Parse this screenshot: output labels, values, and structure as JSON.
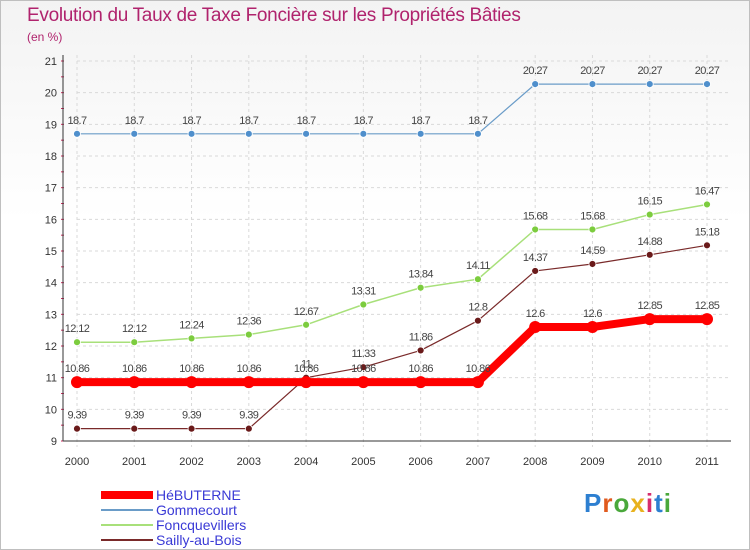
{
  "title": "Evolution du Taux de Taxe Foncière sur les Propriétés Bâties",
  "subtitle": "(en %)",
  "brand": {
    "letters": [
      "P",
      "r",
      "o",
      "x",
      "i",
      "t",
      "i"
    ],
    "colors": [
      "#2d7fd1",
      "#e05a1e",
      "#4aa83b",
      "#e8b21f",
      "#d62d6e",
      "#2d7fd1",
      "#4aa83b"
    ]
  },
  "chart_data": {
    "type": "line",
    "title": "Evolution du Taux de Taxe Foncière sur les Propriétés Bâties",
    "ylabel": "(en %)",
    "xlabel": "",
    "x": [
      "2000",
      "2001",
      "2002",
      "2003",
      "2004",
      "2005",
      "2006",
      "2007",
      "2008",
      "2009",
      "2010",
      "2011"
    ],
    "ylim": [
      9,
      21
    ],
    "yticks": [
      "9",
      "10",
      "11",
      "12",
      "13",
      "14",
      "15",
      "16",
      "17",
      "18",
      "19",
      "20",
      "21"
    ],
    "grid": true,
    "legend": "bottom-left",
    "series": [
      {
        "name": "HéBUTERNE",
        "color": "#ff0000",
        "width": 8,
        "marker": 6,
        "values": [
          10.86,
          10.86,
          10.86,
          10.86,
          10.86,
          10.86,
          10.86,
          10.86,
          12.6,
          12.6,
          12.85,
          12.85
        ],
        "labels": [
          "10.86",
          "10.86",
          "10.86",
          "10.86",
          "10.86",
          "10.86",
          "10.86",
          "10.86",
          "12.6",
          "12.6",
          "12.85",
          "12.85"
        ]
      },
      {
        "name": "Gommecourt",
        "color": "#6a9cc8",
        "width": 1.2,
        "marker": 3.5,
        "fill": "#4f8fcc",
        "values": [
          18.7,
          18.7,
          18.7,
          18.7,
          18.7,
          18.7,
          18.7,
          18.7,
          20.27,
          20.27,
          20.27,
          20.27
        ],
        "labels": [
          "18.7",
          "18.7",
          "18.7",
          "18.7",
          "18.7",
          "18.7",
          "18.7",
          "18.7",
          "20.27",
          "20.27",
          "20.27",
          "20.27"
        ]
      },
      {
        "name": "Foncquevillers",
        "color": "#a8e07a",
        "width": 1.5,
        "marker": 3.5,
        "fill": "#7ccc3e",
        "values": [
          12.12,
          12.12,
          12.24,
          12.36,
          12.67,
          13.31,
          13.84,
          14.11,
          15.68,
          15.68,
          16.15,
          16.47
        ],
        "labels": [
          "12.12",
          "12.12",
          "12.24",
          "12.36",
          "12.67",
          "13.31",
          "13.84",
          "14.11",
          "15.68",
          "15.68",
          "16.15",
          "16.47"
        ]
      },
      {
        "name": "Sailly-au-Bois",
        "color": "#7a2a2a",
        "width": 1.2,
        "marker": 3.5,
        "fill": "#6a1a1a",
        "values": [
          9.39,
          9.39,
          9.39,
          9.39,
          11,
          11.33,
          11.86,
          12.8,
          14.37,
          14.59,
          14.88,
          15.18
        ],
        "labels": [
          "9.39",
          "9.39",
          "9.39",
          "9.39",
          "11",
          "11.33",
          "11.86",
          "12.8",
          "14.37",
          "14.59",
          "14.88",
          "15.18"
        ]
      }
    ]
  }
}
